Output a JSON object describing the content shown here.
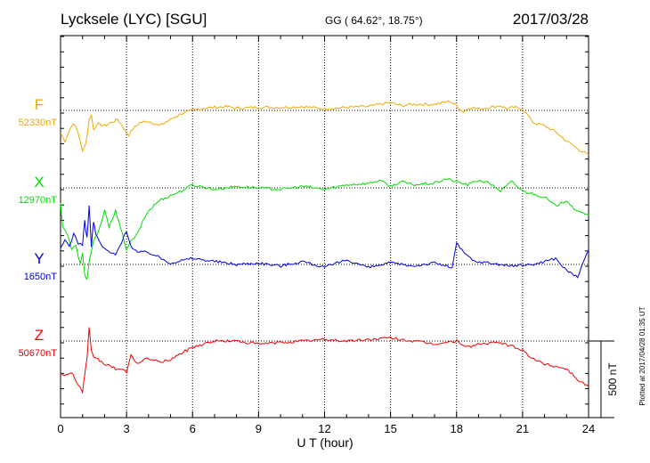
{
  "header": {
    "station": "Lycksele (LYC)  [SGU]",
    "coords": "GG ( 64.62°,  18.75°)",
    "date": "2017/03/28"
  },
  "plotted_note": "Plotted at 2017/04/28 01:35 UT",
  "scale_bar_label": "500 nT",
  "chart_data": {
    "type": "line",
    "xlabel": "U T (hour)",
    "xlim": [
      0,
      24
    ],
    "x_ticks": [
      "0",
      "3",
      "6",
      "9",
      "12",
      "15",
      "18",
      "21",
      "24"
    ],
    "scale_nT": 500,
    "grid": true,
    "series": [
      {
        "name": "F",
        "baseline": "52330nT",
        "color": "#f0a800",
        "x": [
          0,
          0.2,
          0.4,
          0.6,
          0.8,
          1.0,
          1.1,
          1.2,
          1.3,
          1.4,
          1.5,
          1.7,
          2.0,
          2.3,
          2.6,
          2.9,
          3.0,
          3.1,
          3.3,
          3.6,
          4.0,
          4.5,
          5.0,
          5.5,
          6.0,
          6.5,
          7.0,
          7.5,
          8.0,
          9.0,
          10.0,
          11.0,
          12.0,
          13.0,
          14.0,
          14.5,
          15.0,
          15.5,
          16.0,
          17.0,
          17.7,
          18.0,
          18.3,
          18.6,
          19.0,
          19.5,
          20.0,
          20.3,
          20.6,
          21.0,
          21.5,
          22.0,
          22.5,
          23.0,
          23.5,
          24.0
        ],
        "values": [
          -150,
          -200,
          -130,
          -80,
          -150,
          -260,
          -240,
          -170,
          -60,
          -30,
          -120,
          -90,
          -100,
          -80,
          -60,
          -120,
          -150,
          -160,
          -120,
          -80,
          -70,
          -100,
          -60,
          -20,
          0,
          15,
          20,
          25,
          15,
          20,
          20,
          25,
          10,
          20,
          25,
          40,
          50,
          30,
          40,
          40,
          60,
          30,
          -10,
          20,
          10,
          20,
          30,
          10,
          20,
          10,
          -80,
          -100,
          -140,
          -200,
          -250,
          -290
        ]
      },
      {
        "name": "X",
        "baseline": "12970nT",
        "color": "#00dd00",
        "x": [
          0,
          0.1,
          0.3,
          0.5,
          0.7,
          0.9,
          1.0,
          1.1,
          1.2,
          1.3,
          1.5,
          1.7,
          2.0,
          2.2,
          2.5,
          2.8,
          3.0,
          3.2,
          3.5,
          3.8,
          4.0,
          4.5,
          5.0,
          5.5,
          6.0,
          7.0,
          8.0,
          9.0,
          10.0,
          11.0,
          12.0,
          13.0,
          14.0,
          14.5,
          15.0,
          15.5,
          16.0,
          17.0,
          17.5,
          18.0,
          18.5,
          19.0,
          19.5,
          20.0,
          20.5,
          21.0,
          21.5,
          22.0,
          22.5,
          23.0,
          23.5,
          24.0
        ],
        "values": [
          -100,
          -250,
          -300,
          -400,
          -380,
          -500,
          -430,
          -560,
          -600,
          -480,
          -350,
          -300,
          -150,
          -250,
          -150,
          -300,
          -400,
          -350,
          -300,
          -200,
          -150,
          -80,
          -50,
          -20,
          20,
          -10,
          10,
          0,
          -10,
          10,
          -10,
          20,
          30,
          50,
          10,
          40,
          20,
          30,
          60,
          40,
          20,
          50,
          30,
          -20,
          40,
          -20,
          -40,
          -60,
          -120,
          -80,
          -160,
          -170
        ]
      },
      {
        "name": "Y",
        "baseline": "1650nT",
        "color": "#0000dd",
        "x": [
          0,
          0.2,
          0.4,
          0.6,
          0.8,
          1.0,
          1.1,
          1.2,
          1.3,
          1.4,
          1.5,
          1.6,
          1.8,
          2.0,
          2.5,
          3.0,
          3.2,
          3.5,
          4.0,
          5.0,
          6.0,
          7.0,
          8.0,
          9.0,
          10.0,
          11.0,
          12.0,
          13.0,
          14.0,
          15.0,
          16.0,
          17.0,
          17.8,
          18.0,
          18.3,
          18.8,
          19.5,
          20.5,
          21.5,
          22.5,
          23.0,
          23.5,
          24.0
        ],
        "values": [
          100,
          160,
          120,
          200,
          140,
          130,
          280,
          170,
          380,
          120,
          280,
          200,
          140,
          100,
          60,
          220,
          120,
          80,
          80,
          10,
          40,
          20,
          0,
          10,
          -10,
          20,
          -20,
          30,
          -20,
          10,
          -10,
          10,
          -20,
          140,
          80,
          20,
          10,
          -10,
          0,
          40,
          -40,
          -80,
          90
        ]
      },
      {
        "name": "Z",
        "baseline": "50670nT",
        "color": "#ee0000",
        "x": [
          0,
          0.2,
          0.5,
          0.8,
          1.0,
          1.1,
          1.2,
          1.3,
          1.4,
          1.5,
          1.7,
          2.0,
          2.5,
          3.0,
          3.2,
          3.5,
          4.0,
          4.5,
          5.0,
          5.5,
          6.0,
          6.5,
          7.0,
          8.0,
          9.0,
          10.0,
          11.0,
          12.0,
          13.0,
          14.0,
          15.0,
          16.0,
          17.0,
          18.0,
          18.5,
          19.0,
          20.0,
          21.0,
          21.5,
          22.0,
          23.0,
          23.5,
          24.0
        ],
        "values": [
          -200,
          -230,
          -200,
          -290,
          -330,
          -220,
          -120,
          80,
          -70,
          -100,
          -120,
          -150,
          -180,
          -200,
          -90,
          -150,
          -110,
          -140,
          -120,
          -80,
          -40,
          -20,
          0,
          0,
          -20,
          -10,
          0,
          10,
          0,
          10,
          20,
          0,
          -20,
          0,
          -40,
          -20,
          -10,
          -60,
          -120,
          -150,
          -180,
          -250,
          -300
        ]
      }
    ]
  }
}
